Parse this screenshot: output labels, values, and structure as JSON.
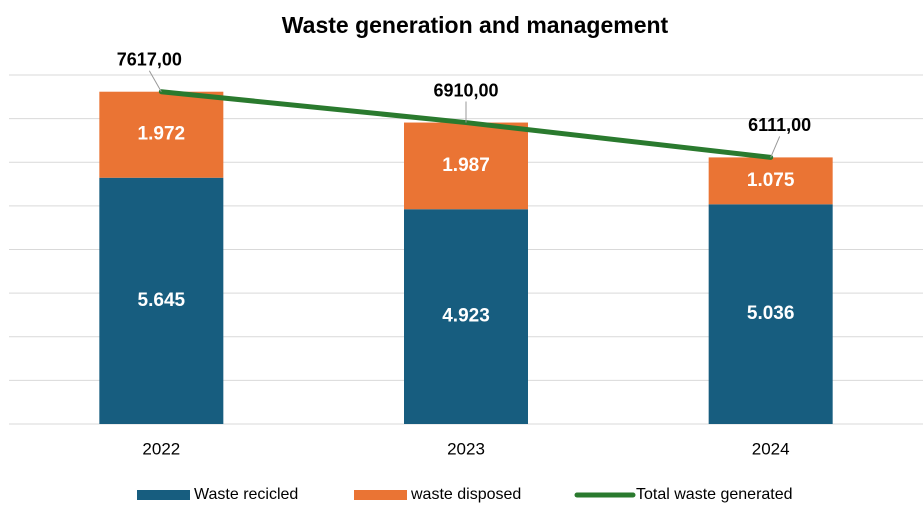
{
  "chart_data": {
    "type": "bar",
    "stacked": true,
    "title": "Waste generation and management",
    "categories": [
      "2022",
      "2023",
      "2024"
    ],
    "series": [
      {
        "name": "Waste recicled",
        "type": "bar",
        "color": "#175d7f",
        "values": [
          5645,
          4923,
          5036
        ],
        "value_labels": [
          "5.645",
          "4.923",
          "5.036"
        ]
      },
      {
        "name": "waste disposed",
        "type": "bar",
        "color": "#ea7434",
        "values": [
          1972,
          1987,
          1075
        ],
        "value_labels": [
          "1.972",
          "1.987",
          "1.075"
        ]
      },
      {
        "name": "Total waste generated",
        "type": "line",
        "color": "#2a7a2e",
        "values": [
          7617,
          6910,
          6111
        ],
        "value_labels": [
          "7617,00",
          "6910,00",
          "6111,00"
        ]
      }
    ],
    "ylim": [
      0,
      8000
    ],
    "yticks": [
      0,
      1000,
      2000,
      3000,
      4000,
      5000,
      6000,
      7000,
      8000
    ],
    "grid": true,
    "legend": "bottom"
  }
}
